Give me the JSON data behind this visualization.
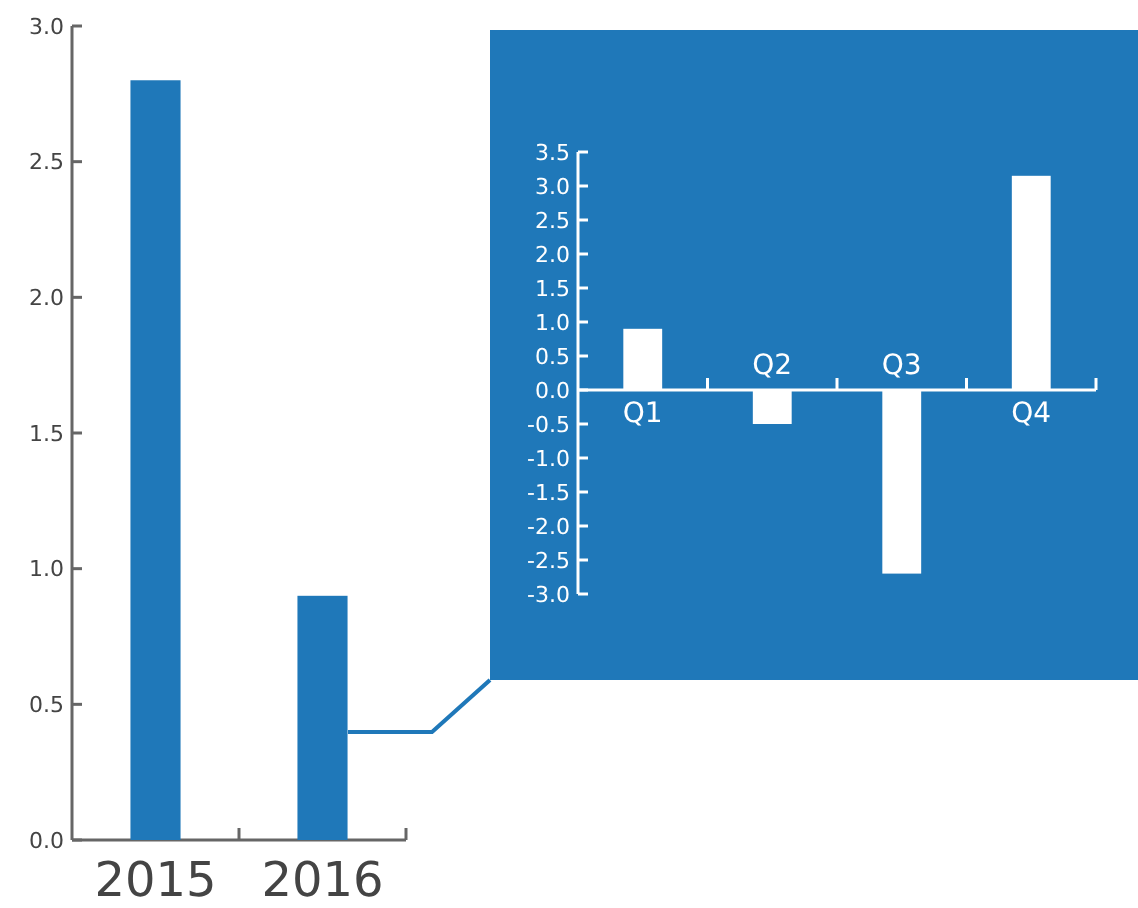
{
  "chart_data": [
    {
      "type": "bar",
      "categories": [
        "2015",
        "2016"
      ],
      "values": [
        2.8,
        0.9
      ],
      "color": "#1f78b9",
      "ylim": [
        0,
        3
      ],
      "yticks": [
        {
          "value": 0,
          "label": "0.0"
        },
        {
          "value": 0.5,
          "label": "0.5"
        },
        {
          "value": 1,
          "label": "1.0"
        },
        {
          "value": 1.5,
          "label": "1.5"
        },
        {
          "value": 2,
          "label": "2.0"
        },
        {
          "value": 2.5,
          "label": "2.5"
        },
        {
          "value": 3,
          "label": "3.0"
        }
      ]
    },
    {
      "type": "bar",
      "categories": [
        "Q1",
        "Q2",
        "Q3",
        "Q4"
      ],
      "values": [
        0.9,
        -0.5,
        -2.7,
        3.15
      ],
      "color": "#ffffff",
      "ylim": [
        -3,
        3.5
      ],
      "yticks": [
        {
          "value": -3,
          "label": "-3.0"
        },
        {
          "value": -2.5,
          "label": "-2.5"
        },
        {
          "value": -2,
          "label": "-2.0"
        },
        {
          "value": -1.5,
          "label": "-1.5"
        },
        {
          "value": -1,
          "label": "-1.0"
        },
        {
          "value": -0.5,
          "label": "-0.5"
        },
        {
          "value": 0,
          "label": "0.0"
        },
        {
          "value": 0.5,
          "label": "0.5"
        },
        {
          "value": 1,
          "label": "1.0"
        },
        {
          "value": 1.5,
          "label": "1.5"
        },
        {
          "value": 2,
          "label": "2.0"
        },
        {
          "value": 2.5,
          "label": "2.5"
        },
        {
          "value": 3,
          "label": "3.0"
        },
        {
          "value": 3.5,
          "label": "3.5"
        }
      ]
    }
  ]
}
